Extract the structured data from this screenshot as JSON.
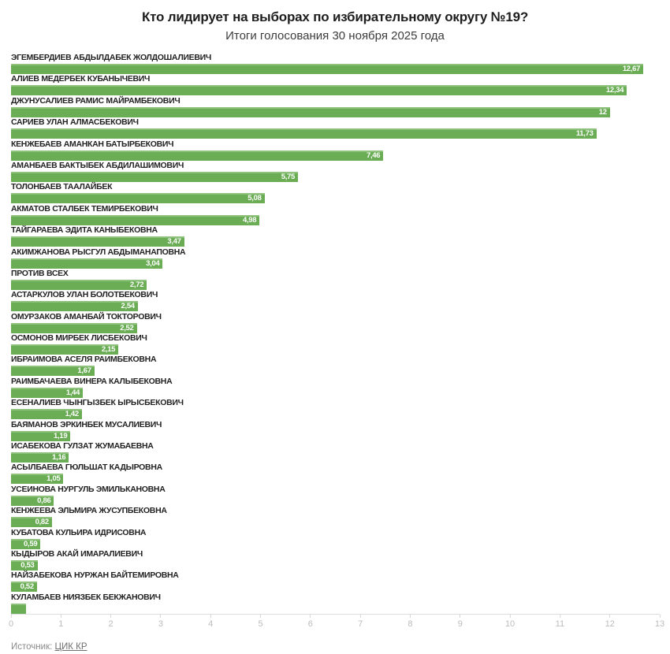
{
  "header": {
    "title": "Кто лидирует на выборах по избирательному округу №19?",
    "subtitle": "Итоги голосования 30 ноября 2025 года"
  },
  "footer": {
    "source_label": "Источник:",
    "source_link": "ЦИК КР"
  },
  "chart_data": {
    "type": "bar",
    "orientation": "horizontal",
    "title": "Кто лидирует на выборах по избирательному округу №19?",
    "subtitle": "Итоги голосования 30 ноября 2025 года",
    "xlim": [
      0,
      13
    ],
    "x_ticks": [
      "0",
      "1",
      "2",
      "3",
      "4",
      "5",
      "6",
      "7",
      "8",
      "9",
      "10",
      "11",
      "12",
      "13"
    ],
    "grid": false,
    "bar_color": "#6aad55",
    "bar_highlight_color": "#8ec17c",
    "value_label_color": "#ffffff",
    "categories": [
      "ЭГЕМБЕРДИЕВ АБДЫЛДАБЕК ЖОЛДОШАЛИЕВИЧ",
      "АЛИЕВ МЕДЕРБЕК КУБАНЫЧЕВИЧ",
      "ДЖУНУСАЛИЕВ РАМИС МАЙРАМБЕКОВИЧ",
      "САРИЕВ УЛАН АЛМАСБЕКОВИЧ",
      "КЕНЖЕБАЕВ АМАНКАН БАТЫРБЕКОВИЧ",
      "АМАНБАЕВ БАКТЫБЕК АБДИЛАШИМОВИЧ",
      "ТОЛОНБАЕВ ТААЛАЙБЕК",
      "АКМАТОВ СТАЛБЕК ТЕМИРБЕКОВИЧ",
      "ТАЙГАРАЕВА ЭДИТА КАНЫБЕКОВНА",
      "АКИМЖАНОВА РЫСГУЛ АБДЫМАНАПОВНА",
      "ПРОТИВ ВСЕХ",
      "АСТАРКУЛОВ УЛАН БОЛОТБЕКОВИЧ",
      "ОМУРЗАКОВ АМАНБАЙ ТОКТОРОВИЧ",
      "ОСМОНОВ МИРБЕК ЛИСБЕКОВИЧ",
      "ИБРАИМОВА АСЕЛЯ РАИМБЕКОВНА",
      "РАИМБАЧАЕВА ВИНЕРА КАЛЫБЕКОВНА",
      "ЕСЕНАЛИЕВ ЧЫНГЫЗБЕК ЫРЫСБЕКОВИЧ",
      "БАЯМАНОВ ЭРКИНБЕК МУСАЛИЕВИЧ",
      "ИСАБЕКОВА ГУЛЗАТ ЖУМАБАЕВНА",
      "АСЫЛБАЕВА ГЮЛЬШАТ КАДЫРОВНА",
      "УСЕИНОВА НУРГУЛЬ ЭМИЛЬКАНОВНА",
      "КЕНЖЕЕВА ЭЛЬМИРА ЖУСУПБЕКОВНА",
      "КУБАТОВА КУЛЬИРА ИДРИСОВНА",
      "КЫДЫРОВ АКАЙ ИМАРАЛИЕВИЧ",
      "НАЙЗАБЕКОВА НУРЖАН БАЙТЕМИРОВНА",
      "КУЛАМБАЕВ НИЯЗБЕК БЕКЖАНОВИЧ"
    ],
    "values": [
      12.67,
      12.34,
      12,
      11.73,
      7.46,
      5.75,
      5.08,
      4.98,
      3.47,
      3.04,
      2.72,
      2.54,
      2.52,
      2.15,
      1.67,
      1.44,
      1.42,
      1.19,
      1.16,
      1.05,
      0.86,
      0.82,
      0.59,
      0.53,
      0.52,
      0.3
    ],
    "value_labels": [
      "12,67",
      "12,34",
      "12",
      "11,73",
      "7,46",
      "5,75",
      "5,08",
      "4,98",
      "3,47",
      "3,04",
      "2,72",
      "2,54",
      "2,52",
      "2,15",
      "1,67",
      "1,44",
      "1,42",
      "1,19",
      "1,16",
      "1,05",
      "0,86",
      "0,82",
      "0,59",
      "0,53",
      "0,52",
      ""
    ]
  }
}
